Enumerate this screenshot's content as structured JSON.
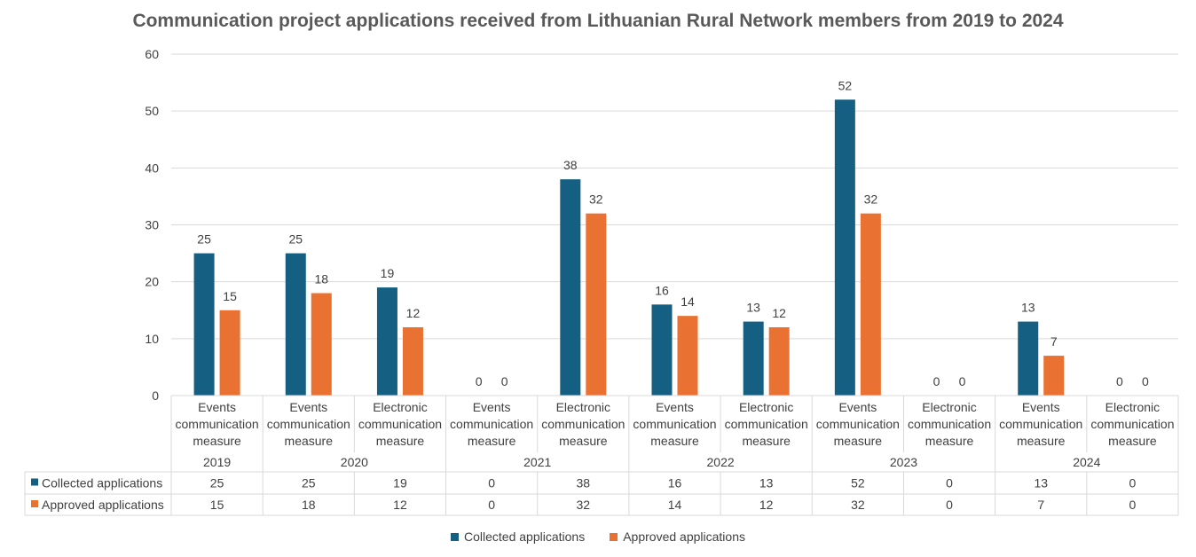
{
  "chart_data": {
    "type": "bar",
    "title": "Communication project applications received from Lithuanian Rural Network members from 2019 to 2024",
    "ylim": [
      0,
      60
    ],
    "yticks": [
      0,
      10,
      20,
      30,
      40,
      50,
      60
    ],
    "grid": true,
    "legend_position": "bottom",
    "categories": [
      {
        "label": "Events communication measure",
        "year": "2019"
      },
      {
        "label": "Events communication measure",
        "year": "2020"
      },
      {
        "label": "Electronic communication measure",
        "year": "2020"
      },
      {
        "label": "Events communication measure",
        "year": "2021"
      },
      {
        "label": "Electronic communication measure",
        "year": "2021"
      },
      {
        "label": "Events communication measure",
        "year": "2022"
      },
      {
        "label": "Electronic communication measure",
        "year": "2022"
      },
      {
        "label": "Events communication measure",
        "year": "2023"
      },
      {
        "label": "Electronic communication measure",
        "year": "2023"
      },
      {
        "label": "Events communication measure",
        "year": "2024"
      },
      {
        "label": "Electronic communication measure",
        "year": "2024"
      }
    ],
    "years": [
      "2019",
      "2020",
      "2021",
      "2022",
      "2023",
      "2024"
    ],
    "series": [
      {
        "name": "Collected applications",
        "color": "#156082",
        "values": [
          25,
          25,
          19,
          0,
          38,
          16,
          13,
          52,
          0,
          13,
          0
        ]
      },
      {
        "name": "Approved applications",
        "color": "#E97132",
        "values": [
          15,
          18,
          12,
          0,
          32,
          14,
          12,
          32,
          0,
          7,
          0
        ]
      }
    ]
  }
}
